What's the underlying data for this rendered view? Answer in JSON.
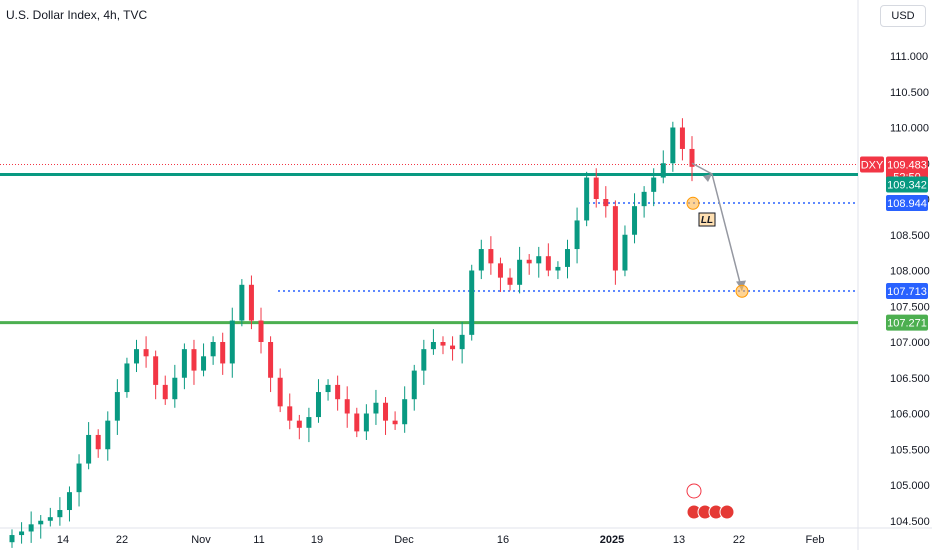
{
  "header": {
    "title": "U.S. Dollar Index, 4h, TVC",
    "currency": "USD"
  },
  "colors": {
    "up": "#089981",
    "down": "#f23645",
    "green_line": "#089981",
    "green_line2": "#4caf50",
    "blue_dotted": "#2962ff",
    "red_price": "#f23645",
    "marker": "#ffb74d"
  },
  "chart_data": {
    "type": "candlestick",
    "ylim": [
      104.5,
      111.25
    ],
    "y_ticks": [
      "111.000",
      "110.500",
      "110.000",
      "109.500",
      "109.000",
      "108.500",
      "108.000",
      "107.500",
      "107.000",
      "106.500",
      "106.000",
      "105.500",
      "105.000",
      "104.500"
    ],
    "x_ticks": [
      {
        "label": "14",
        "bold": false
      },
      {
        "label": "22",
        "bold": false
      },
      {
        "label": "Nov",
        "bold": false
      },
      {
        "label": "11",
        "bold": false
      },
      {
        "label": "19",
        "bold": false
      },
      {
        "label": "Dec",
        "bold": false
      },
      {
        "label": "16",
        "bold": false
      },
      {
        "label": "2025",
        "bold": true
      },
      {
        "label": "13",
        "bold": false
      },
      {
        "label": "22",
        "bold": false
      },
      {
        "label": "Feb",
        "bold": false
      }
    ],
    "levels": [
      {
        "name": "DXY",
        "value": 109.483,
        "label": "109.483",
        "extra": "52:50",
        "style": "red-dotted"
      },
      {
        "value": 109.342,
        "label": "109.342",
        "style": "green-solid"
      },
      {
        "value": 108.944,
        "label": "108.944",
        "style": "blue-dotted"
      },
      {
        "value": 107.713,
        "label": "107.713",
        "style": "blue-dotted"
      },
      {
        "value": 107.271,
        "label": "107.271",
        "style": "green-solid"
      }
    ],
    "annotations": {
      "ll_label": "LL",
      "projection": [
        {
          "date": "Jan 16",
          "value": 109.35
        },
        {
          "date": "Jan 21",
          "value": 107.72
        }
      ],
      "markers": [
        {
          "date": "Jan 15",
          "value": 108.94
        },
        {
          "date": "Jan 21",
          "value": 107.71
        }
      ]
    },
    "series_close": [
      104.3,
      104.35,
      104.45,
      104.5,
      104.55,
      104.65,
      104.9,
      105.3,
      105.7,
      105.5,
      105.9,
      106.3,
      106.7,
      106.9,
      106.8,
      106.4,
      106.2,
      106.5,
      106.9,
      106.6,
      106.8,
      107.0,
      106.7,
      107.3,
      107.8,
      107.3,
      107.0,
      106.5,
      106.1,
      105.9,
      105.8,
      105.95,
      106.3,
      106.4,
      106.2,
      106.0,
      105.75,
      106.0,
      106.15,
      105.9,
      105.85,
      106.2,
      106.6,
      106.9,
      107.0,
      106.95,
      106.9,
      107.1,
      108.0,
      108.3,
      108.1,
      107.9,
      107.8,
      108.15,
      108.1,
      108.2,
      108.0,
      108.05,
      108.3,
      108.7,
      109.3,
      109.0,
      108.9,
      108.0,
      108.5,
      108.9,
      109.1,
      109.3,
      109.5,
      110.0,
      109.7,
      109.45
    ]
  }
}
